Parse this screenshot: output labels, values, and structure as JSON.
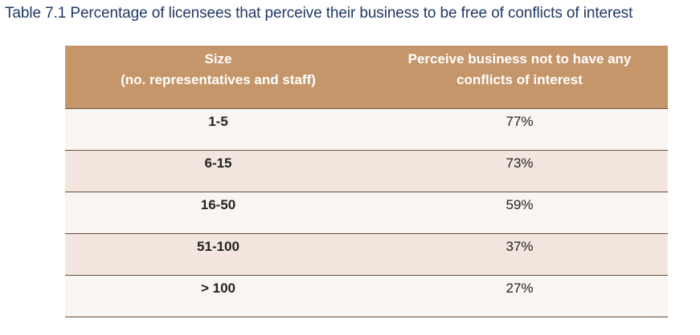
{
  "caption": "Table 7.1 Percentage of licensees that perceive their business to be free of conflicts of interest",
  "table": {
    "headers": {
      "size_line1": "Size",
      "size_line2": "(no. representatives and staff)",
      "perceive_line1": "Perceive business not to have any",
      "perceive_line2": "conflicts of interest"
    },
    "rows": [
      {
        "size": "1-5",
        "value": "77%"
      },
      {
        "size": "6-15",
        "value": "73%"
      },
      {
        "size": "16-50",
        "value": "59%"
      },
      {
        "size": "51-100",
        "value": "37%"
      },
      {
        "size": "> 100",
        "value": "27%"
      }
    ]
  },
  "colors": {
    "header_bg": "#c5966a",
    "row_light": "#f9f5f2",
    "row_dark": "#f2e6df",
    "caption_text": "#1f3864"
  }
}
